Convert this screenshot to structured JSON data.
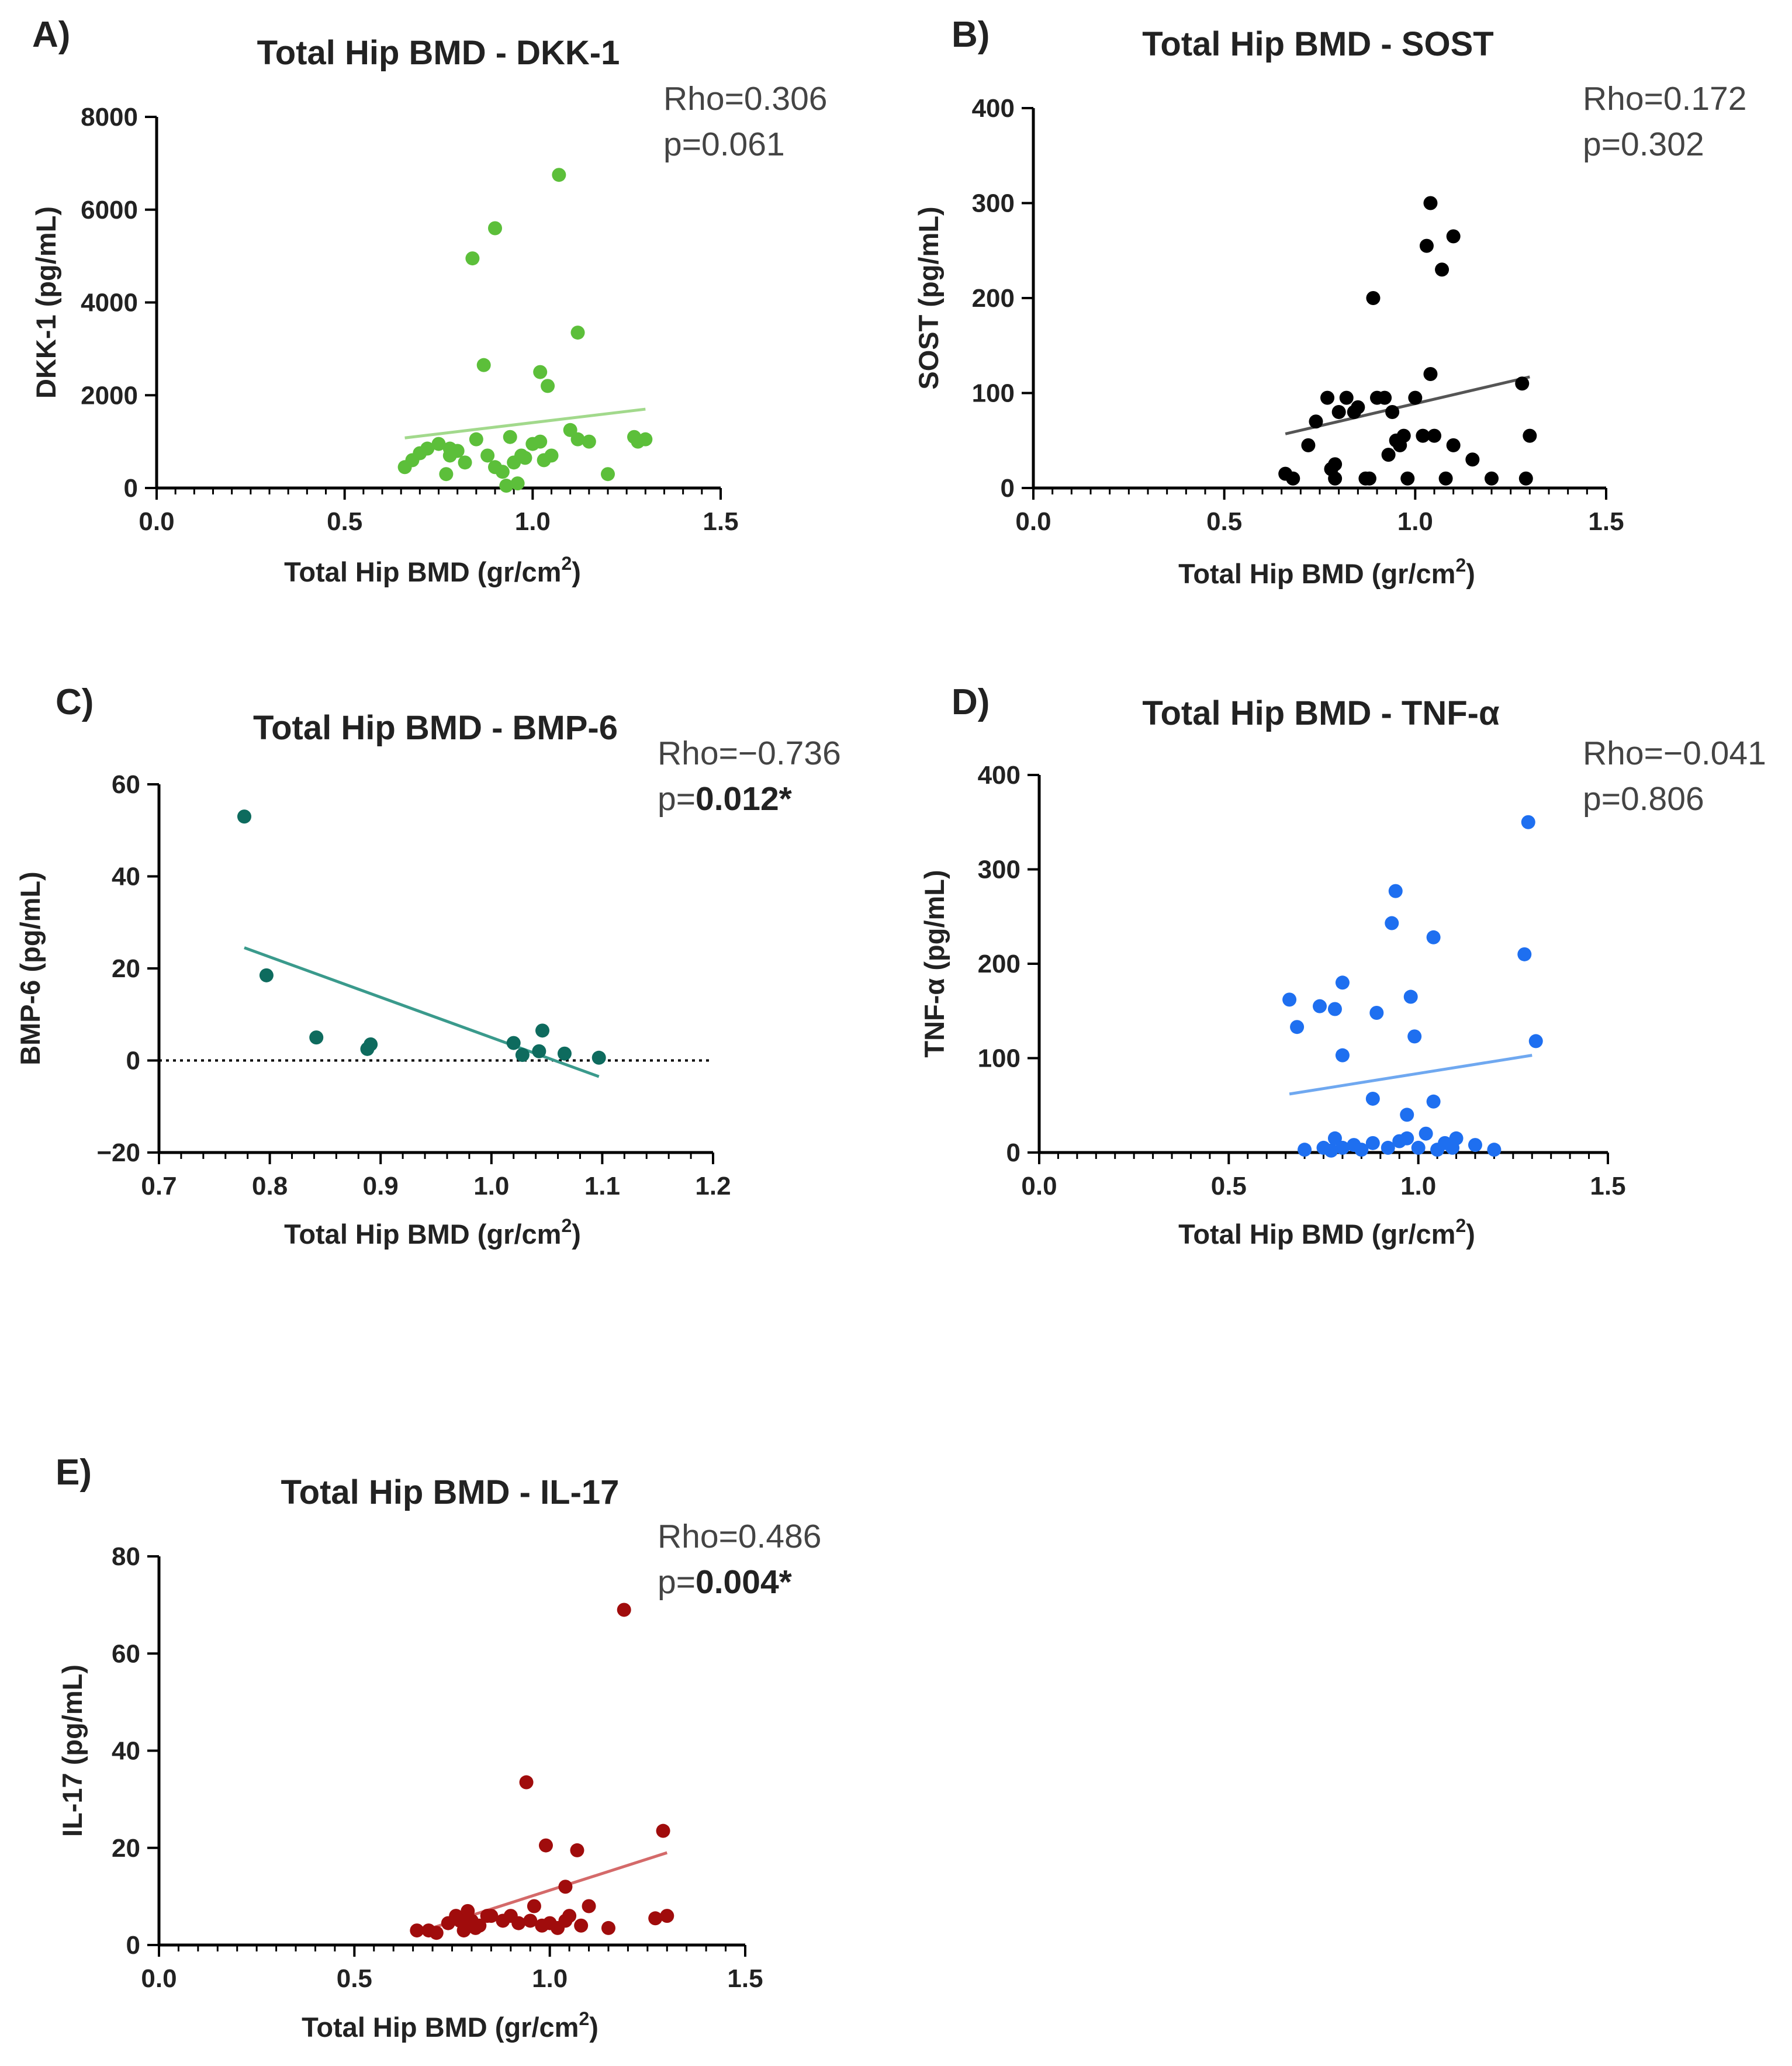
{
  "chart_data": [
    {
      "panel": "A)",
      "type": "scatter",
      "title": "Total Hip BMD - DKK-1",
      "xlabel": "Total Hip BMD (gr/cm",
      "xlabel_sup": "2",
      "xlabel_tail": ")",
      "ylabel": "DKK-1 (pg/mL)",
      "xlim": [
        0.0,
        1.5
      ],
      "ylim": [
        0,
        8000
      ],
      "xticks": [
        "0.0",
        "0.5",
        "1.0",
        "1.5"
      ],
      "yticks": [
        "0",
        "2000",
        "4000",
        "6000",
        "8000"
      ],
      "color": "#5cbf3a",
      "line_color": "#a2d98c",
      "rho": "Rho=0.306",
      "p_prefix": "p=",
      "p_value": "0.061",
      "p_bold": false,
      "fit": [
        [
          0.66,
          1080
        ],
        [
          1.3,
          1700
        ]
      ],
      "x": [
        0.66,
        0.68,
        0.7,
        0.72,
        0.75,
        0.78,
        0.77,
        0.8,
        0.78,
        0.82,
        0.85,
        0.88,
        0.9,
        0.92,
        0.94,
        0.95,
        0.97,
        1.0,
        1.03,
        1.05,
        1.1,
        1.12,
        1.15,
        1.2,
        1.27,
        1.3,
        1.28,
        0.98,
        1.02,
        0.96,
        0.84,
        0.9,
        1.07,
        1.12,
        1.02,
        1.04,
        0.87,
        0.93
      ],
      "y": [
        450,
        600,
        750,
        850,
        950,
        850,
        300,
        800,
        700,
        550,
        1050,
        700,
        450,
        350,
        1100,
        550,
        700,
        950,
        600,
        700,
        1250,
        1050,
        1000,
        300,
        1100,
        1050,
        1000,
        650,
        1000,
        100,
        4950,
        5600,
        6750,
        3350,
        2500,
        2200,
        2650,
        50
      ]
    },
    {
      "panel": "B)",
      "type": "scatter",
      "title": "Total Hip BMD - SOST",
      "xlabel": "Total Hip BMD (gr/cm",
      "xlabel_sup": "2",
      "xlabel_tail": ")",
      "ylabel": "SOST (pg/mL)",
      "xlim": [
        0.0,
        1.5
      ],
      "ylim": [
        0,
        400
      ],
      "xticks": [
        "0.0",
        "0.5",
        "1.0",
        "1.5"
      ],
      "yticks": [
        "0",
        "100",
        "200",
        "300",
        "400"
      ],
      "color": "#000000",
      "line_color": "#555555",
      "rho": "Rho=0.172",
      "p_prefix": "p=",
      "p_value": "0.302",
      "p_bold": false,
      "fit": [
        [
          0.66,
          57
        ],
        [
          1.3,
          117
        ]
      ],
      "x": [
        0.66,
        0.68,
        0.72,
        0.74,
        0.77,
        0.78,
        0.79,
        0.8,
        0.82,
        0.84,
        0.85,
        0.88,
        0.9,
        0.92,
        0.93,
        0.95,
        0.96,
        0.98,
        1.0,
        1.02,
        1.04,
        1.05,
        1.08,
        1.1,
        1.15,
        1.2,
        1.28,
        1.3,
        1.29,
        1.04,
        1.03,
        1.07,
        1.1,
        0.89,
        0.78,
        0.94,
        0.97,
        0.87,
        0.79
      ],
      "y": [
        15,
        10,
        45,
        70,
        95,
        20,
        10,
        80,
        95,
        80,
        85,
        10,
        95,
        95,
        35,
        50,
        45,
        10,
        95,
        55,
        120,
        55,
        10,
        45,
        30,
        10,
        110,
        55,
        10,
        300,
        255,
        230,
        265,
        200,
        20,
        80,
        55,
        10,
        25
      ]
    },
    {
      "panel": "C)",
      "type": "scatter",
      "title": "Total Hip BMD - BMP-6",
      "xlabel": "Total Hip BMD  (gr/cm",
      "xlabel_sup": "2",
      "xlabel_tail": ")",
      "ylabel": "BMP-6 (pg/mL)",
      "xlim": [
        0.7,
        1.2
      ],
      "ylim": [
        -20,
        60
      ],
      "xticks": [
        "0.7",
        "0.8",
        "0.9",
        "1.0",
        "1.1",
        "1.2"
      ],
      "yticks": [
        "−20",
        "0",
        "20",
        "40",
        "60"
      ],
      "color": "#0e6b5e",
      "line_color": "#3a9a8c",
      "rho": "Rho=−0.736",
      "p_prefix": "p=",
      "p_value": "0.012*",
      "p_bold": true,
      "zero_line": true,
      "fit": [
        [
          0.777,
          24.5
        ],
        [
          1.097,
          -3.5
        ]
      ],
      "x": [
        0.777,
        0.797,
        0.842,
        0.888,
        0.891,
        1.02,
        1.028,
        1.043,
        1.046,
        1.066,
        1.097
      ],
      "y": [
        53,
        18.5,
        5,
        2.5,
        3.5,
        3.8,
        1.2,
        2.0,
        6.5,
        1.5,
        0.6
      ]
    },
    {
      "panel": "D)",
      "type": "scatter",
      "title": "Total Hip BMD - TNF-α",
      "xlabel": "Total Hip BMD  (gr/cm",
      "xlabel_sup": "2",
      "xlabel_tail": ")",
      "ylabel": "TNF-α (pg/mL)",
      "xlim": [
        0.0,
        1.5
      ],
      "ylim": [
        0,
        400
      ],
      "xticks": [
        "0.0",
        "0.5",
        "1.0",
        "1.5"
      ],
      "yticks": [
        "0",
        "100",
        "200",
        "300",
        "400"
      ],
      "color": "#1e6ff0",
      "line_color": "#6fa8f0",
      "rho": "Rho=−0.041",
      "p_prefix": "p=",
      "p_value": "0.806",
      "p_bold": false,
      "fit": [
        [
          0.66,
          62
        ],
        [
          1.3,
          103
        ]
      ],
      "x": [
        0.66,
        0.68,
        0.74,
        0.78,
        0.8,
        0.89,
        0.93,
        0.94,
        0.98,
        0.99,
        1.04,
        1.28,
        1.29,
        1.31,
        0.8,
        0.88,
        0.97,
        1.04,
        0.7,
        0.75,
        0.78,
        0.8,
        0.83,
        0.85,
        0.88,
        0.92,
        0.95,
        0.97,
        1.0,
        1.02,
        1.05,
        1.07,
        1.09,
        1.1,
        1.15,
        1.2,
        0.77
      ],
      "y": [
        162,
        133,
        155,
        152,
        180,
        148,
        243,
        277,
        165,
        123,
        228,
        210,
        350,
        118,
        103,
        57,
        40,
        54,
        3,
        5,
        15,
        5,
        8,
        3,
        10,
        5,
        12,
        15,
        5,
        20,
        3,
        10,
        5,
        15,
        8,
        3,
        2
      ]
    },
    {
      "panel": "E)",
      "type": "scatter",
      "title": "Total Hip BMD - IL-17",
      "xlabel": "Total Hip BMD  (gr/cm",
      "xlabel_sup": "2",
      "xlabel_tail": ")",
      "ylabel": "IL-17 (pg/mL)",
      "xlim": [
        0.0,
        1.5
      ],
      "ylim": [
        0,
        80
      ],
      "xticks": [
        "0.0",
        "0.5",
        "1.0",
        "1.5"
      ],
      "yticks": [
        "0",
        "20",
        "40",
        "60",
        "80"
      ],
      "color": "#a00c0c",
      "line_color": "#d46a6a",
      "rho": "Rho=0.486",
      "p_prefix": "p=",
      "p_value": "0.004*",
      "p_bold": true,
      "fit": [
        [
          0.66,
          2.5
        ],
        [
          1.3,
          19
        ]
      ],
      "x": [
        0.66,
        0.69,
        0.71,
        0.74,
        0.76,
        0.78,
        0.79,
        0.8,
        0.82,
        0.84,
        0.85,
        0.88,
        0.9,
        0.92,
        0.95,
        0.96,
        0.98,
        1.0,
        1.02,
        1.04,
        1.05,
        1.08,
        1.1,
        1.15,
        1.27,
        1.3,
        0.94,
        0.99,
        1.07,
        1.19,
        1.29,
        1.04,
        0.77,
        0.81
      ],
      "y": [
        3,
        3,
        2.5,
        4.5,
        6,
        3,
        7,
        5,
        4,
        6,
        6,
        5,
        6,
        4.5,
        5,
        8,
        4,
        4.5,
        3.5,
        5,
        6,
        4,
        8,
        3.5,
        5.5,
        6,
        33.5,
        20.5,
        19.5,
        69,
        23.5,
        12,
        5,
        3.5
      ]
    }
  ]
}
